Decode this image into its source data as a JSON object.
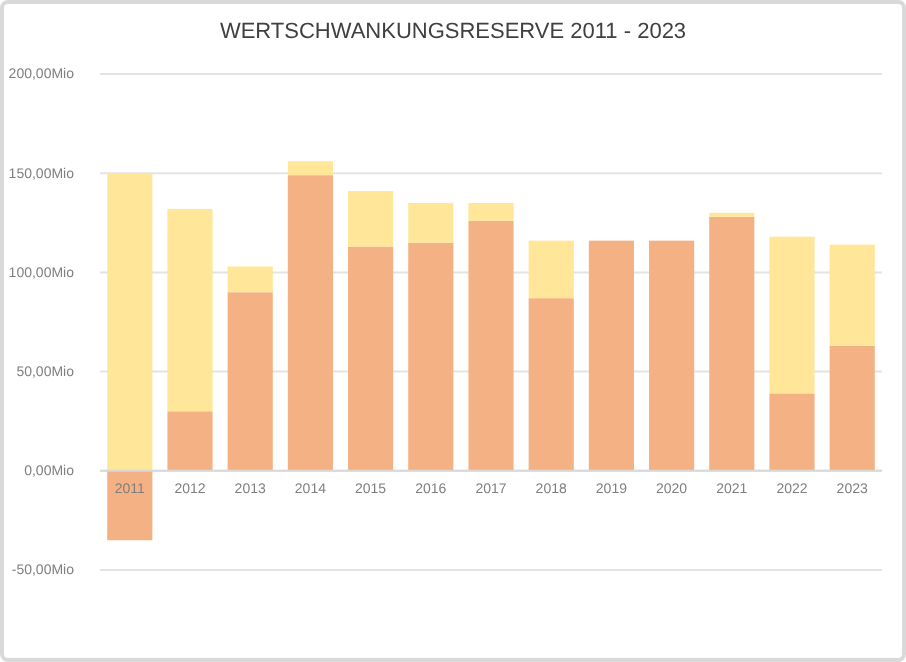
{
  "chart_data": {
    "type": "bar",
    "title": "WERTSCHWANKUNGSRESERVE 2011 - 2023",
    "stacked": true,
    "categories": [
      "2011",
      "2012",
      "2013",
      "2014",
      "2015",
      "2016",
      "2017",
      "2018",
      "2019",
      "2020",
      "2021",
      "2022",
      "2023"
    ],
    "series": [
      {
        "color": "#f4b183",
        "values": [
          -35,
          30,
          90,
          149,
          113,
          115,
          126,
          87,
          116,
          116,
          128,
          39,
          63
        ]
      },
      {
        "color": "#ffe699",
        "values": [
          150,
          102,
          13,
          7,
          28,
          20,
          9,
          29,
          0,
          0,
          2,
          79,
          51
        ]
      }
    ],
    "ylim": [
      -50,
      200
    ],
    "yticks": [
      {
        "value": -50,
        "label": "-50,00Mio"
      },
      {
        "value": 0,
        "label": "0,00Mio"
      },
      {
        "value": 50,
        "label": "50,00Mio"
      },
      {
        "value": 100,
        "label": "100,00Mio"
      },
      {
        "value": 150,
        "label": "150,00Mio"
      },
      {
        "value": 200,
        "label": "200,00Mio"
      }
    ],
    "grid": true
  }
}
